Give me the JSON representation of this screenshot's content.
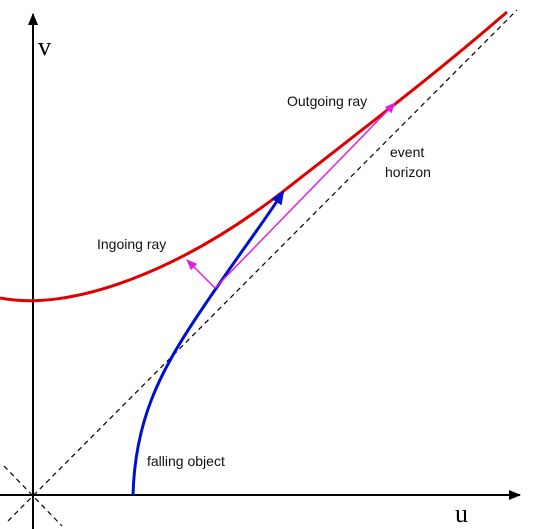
{
  "axes": {
    "vertical_label": "v",
    "horizontal_label": "u"
  },
  "annotations": {
    "outgoing_ray": "Outgoing ray",
    "event_horizon": [
      "event",
      "horizon"
    ],
    "ingoing_ray": "Ingoing ray",
    "falling_object": "falling object"
  }
}
